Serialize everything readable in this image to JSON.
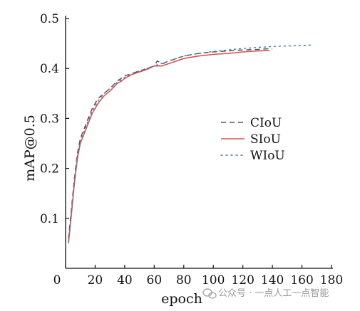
{
  "chart_data": {
    "type": "line",
    "title": "",
    "xlabel": "epoch",
    "ylabel": "mAP@0.5",
    "xlim": [
      0,
      180
    ],
    "ylim": [
      0,
      0.5
    ],
    "x_ticks": [
      "0",
      "20",
      "40",
      "60",
      "80",
      "100",
      "120",
      "140",
      "160",
      "180"
    ],
    "y_ticks": [
      "0.1",
      "0.2",
      "0.3",
      "0.4",
      "0.5"
    ],
    "grid": false,
    "legend_position": "center-right",
    "series": [
      {
        "name": "CIoU",
        "color": "#555555",
        "style": "dashed",
        "x": [
          2,
          4,
          6,
          8,
          10,
          14,
          18,
          22,
          26,
          30,
          35,
          40,
          45,
          50,
          55,
          60,
          62,
          66,
          70,
          80,
          90,
          100,
          110,
          120,
          130,
          140
        ],
        "y": [
          0.06,
          0.12,
          0.18,
          0.23,
          0.26,
          0.29,
          0.32,
          0.34,
          0.35,
          0.36,
          0.375,
          0.385,
          0.39,
          0.395,
          0.4,
          0.405,
          0.415,
          0.41,
          0.415,
          0.425,
          0.43,
          0.433,
          0.435,
          0.437,
          0.438,
          0.44
        ]
      },
      {
        "name": "SIoU",
        "color": "#d9534f",
        "style": "solid",
        "x": [
          2,
          4,
          6,
          8,
          10,
          14,
          18,
          22,
          26,
          30,
          35,
          38,
          40,
          45,
          50,
          55,
          60,
          65,
          70,
          80,
          90,
          100,
          110,
          120,
          130,
          138
        ],
        "y": [
          0.05,
          0.11,
          0.17,
          0.22,
          0.25,
          0.28,
          0.31,
          0.33,
          0.345,
          0.355,
          0.37,
          0.375,
          0.38,
          0.388,
          0.393,
          0.398,
          0.405,
          0.405,
          0.41,
          0.42,
          0.425,
          0.428,
          0.43,
          0.433,
          0.435,
          0.436
        ]
      },
      {
        "name": "WIoU",
        "color": "#4a7fb5",
        "style": "dotted",
        "x": [
          2,
          4,
          6,
          8,
          10,
          14,
          18,
          22,
          26,
          30,
          35,
          40,
          45,
          50,
          55,
          60,
          70,
          80,
          90,
          100,
          110,
          120,
          130,
          140,
          150,
          160,
          168
        ],
        "y": [
          0.055,
          0.115,
          0.175,
          0.225,
          0.255,
          0.285,
          0.315,
          0.335,
          0.35,
          0.36,
          0.372,
          0.382,
          0.39,
          0.395,
          0.4,
          0.405,
          0.415,
          0.425,
          0.43,
          0.434,
          0.437,
          0.44,
          0.442,
          0.444,
          0.445,
          0.446,
          0.447
        ]
      }
    ]
  },
  "watermark": {
    "text": "公众号 · 一点人工一点智能"
  }
}
